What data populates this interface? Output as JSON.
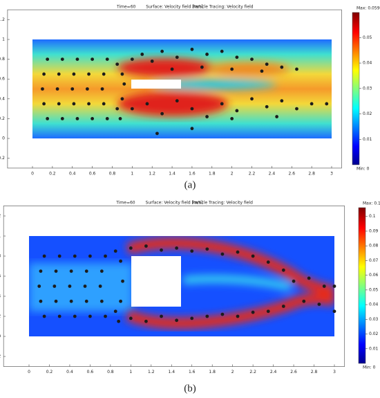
{
  "chart_data": [
    {
      "type": "scatter",
      "panel_label": "(a)",
      "title_parts": [
        "Time=60",
        "Surface: Velocity field [m/s]",
        "Particle Tracing: Velocity field"
      ],
      "xlim": [
        -0.25,
        3.1
      ],
      "ylim": [
        -0.3,
        1.3
      ],
      "xticks": [
        0,
        0.2,
        0.4,
        0.6,
        0.8,
        1,
        1.2,
        1.4,
        1.6,
        1.8,
        2,
        2.2,
        2.4,
        2.6,
        2.8,
        3
      ],
      "yticks": [
        -0.2,
        0,
        0.2,
        0.4,
        0.6,
        0.8,
        1,
        1.2
      ],
      "colorbar": {
        "max_label": "Max: 0.0599",
        "min_label": "Min: 0",
        "lim": [
          0,
          0.0599
        ],
        "ticks": [
          0.01,
          0.02,
          0.03,
          0.04,
          0.05
        ]
      },
      "series": [
        {
          "name": "Particles",
          "color": "#1c1c1c",
          "x": [
            0.15,
            0.115,
            0.1,
            0.115,
            0.15,
            0.3,
            0.265,
            0.25,
            0.265,
            0.3,
            0.45,
            0.415,
            0.4,
            0.415,
            0.45,
            0.6,
            0.565,
            0.55,
            0.565,
            0.6,
            0.75,
            0.715,
            0.7,
            0.715,
            0.75,
            0.85,
            0.9,
            0.92,
            0.9,
            0.85,
            0.88,
            1.0,
            1.1,
            1.2,
            1.3,
            1.45,
            1.6,
            1.75,
            1.9,
            2.05,
            2.2,
            2.35,
            2.5,
            2.65,
            1.4,
            1.7,
            2.0,
            2.3,
            1.0,
            1.15,
            1.3,
            1.45,
            1.6,
            1.75,
            1.9,
            2.05,
            2.2,
            2.35,
            2.5,
            2.65,
            2.8,
            2.95,
            1.6,
            1.25,
            2.0,
            2.45
          ],
          "y": [
            0.8,
            0.65,
            0.5,
            0.35,
            0.2,
            0.8,
            0.65,
            0.5,
            0.35,
            0.2,
            0.8,
            0.65,
            0.5,
            0.35,
            0.2,
            0.8,
            0.65,
            0.5,
            0.35,
            0.2,
            0.8,
            0.65,
            0.5,
            0.35,
            0.2,
            0.75,
            0.65,
            0.55,
            0.4,
            0.3,
            0.2,
            0.8,
            0.85,
            0.78,
            0.88,
            0.82,
            0.9,
            0.85,
            0.88,
            0.82,
            0.8,
            0.75,
            0.72,
            0.7,
            0.7,
            0.72,
            0.7,
            0.68,
            0.3,
            0.35,
            0.25,
            0.38,
            0.3,
            0.22,
            0.35,
            0.28,
            0.4,
            0.32,
            0.38,
            0.3,
            0.35,
            0.35,
            0.1,
            0.05,
            0.2,
            0.22
          ]
        }
      ]
    },
    {
      "type": "scatter",
      "panel_label": "(b)",
      "title_parts": [
        "Time=60",
        "Surface: Velocity field [m/s]",
        "Particle Tracing: Velocity field"
      ],
      "xlim": [
        -0.25,
        3.1
      ],
      "ylim": [
        -0.3,
        1.3
      ],
      "xticks": [
        0,
        0.2,
        0.4,
        0.6,
        0.8,
        1,
        1.2,
        1.4,
        1.6,
        1.8,
        2,
        2.2,
        2.4,
        2.6,
        2.8,
        3
      ],
      "yticks": [
        -0.2,
        0,
        0.2,
        0.4,
        0.6,
        0.8,
        1,
        1.2
      ],
      "colorbar": {
        "max_label": "Max: 0.106",
        "min_label": "Min: 0",
        "lim": [
          0,
          0.106
        ],
        "ticks": [
          0.01,
          0.02,
          0.03,
          0.04,
          0.05,
          0.06,
          0.07,
          0.08,
          0.09,
          0.1
        ]
      },
      "series": [
        {
          "name": "Particles",
          "color": "#1c1c1c",
          "x": [
            0.15,
            0.115,
            0.1,
            0.115,
            0.15,
            0.3,
            0.265,
            0.25,
            0.265,
            0.3,
            0.45,
            0.415,
            0.4,
            0.415,
            0.45,
            0.6,
            0.565,
            0.55,
            0.565,
            0.6,
            0.75,
            0.715,
            0.7,
            0.715,
            0.75,
            0.85,
            0.9,
            0.92,
            0.9,
            0.85,
            0.88,
            1.0,
            1.15,
            1.3,
            1.45,
            1.6,
            1.75,
            1.9,
            2.05,
            2.2,
            2.35,
            2.5,
            2.6,
            2.75,
            2.9,
            3.0,
            1.0,
            1.15,
            1.3,
            1.45,
            1.6,
            1.75,
            1.9,
            2.05,
            2.2,
            2.35,
            2.5,
            2.7,
            2.85,
            3.0
          ],
          "y": [
            0.8,
            0.65,
            0.5,
            0.35,
            0.2,
            0.8,
            0.65,
            0.5,
            0.35,
            0.2,
            0.8,
            0.65,
            0.5,
            0.35,
            0.2,
            0.8,
            0.65,
            0.5,
            0.35,
            0.2,
            0.8,
            0.65,
            0.5,
            0.35,
            0.2,
            0.85,
            0.75,
            0.55,
            0.35,
            0.25,
            0.15,
            0.88,
            0.9,
            0.86,
            0.88,
            0.85,
            0.87,
            0.82,
            0.84,
            0.8,
            0.74,
            0.66,
            0.55,
            0.58,
            0.5,
            0.5,
            0.18,
            0.15,
            0.2,
            0.16,
            0.18,
            0.2,
            0.22,
            0.2,
            0.24,
            0.25,
            0.3,
            0.35,
            0.32,
            0.25
          ]
        }
      ]
    }
  ]
}
